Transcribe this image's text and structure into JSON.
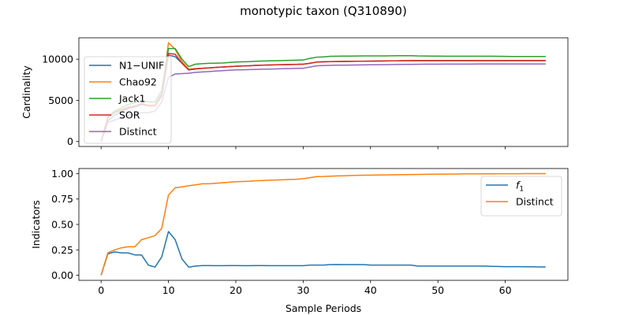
{
  "figure": {
    "title": "monotypic taxon (Q310890)"
  },
  "chart_data": [
    {
      "type": "line",
      "ylabel": "Cardinality",
      "xlabel": "",
      "xlim": [
        -3.3,
        69.3
      ],
      "ylim": [
        -600,
        12600
      ],
      "xticks": [
        0,
        10,
        20,
        30,
        40,
        50,
        60
      ],
      "yticks": [
        0,
        5000,
        10000
      ],
      "ytick_labels": [
        "0",
        "5000",
        "10000"
      ],
      "show_xtick_labels": false,
      "legend_position": "upper-left",
      "grid": false,
      "x": [
        0,
        1,
        2,
        3,
        4,
        5,
        6,
        7,
        8,
        9,
        10,
        11,
        12,
        13,
        14,
        15,
        16,
        17,
        18,
        19,
        20,
        21,
        22,
        23,
        24,
        25,
        26,
        27,
        28,
        29,
        30,
        31,
        32,
        33,
        34,
        35,
        36,
        37,
        38,
        39,
        40,
        41,
        42,
        43,
        44,
        45,
        46,
        47,
        48,
        49,
        50,
        51,
        52,
        53,
        54,
        55,
        56,
        57,
        58,
        59,
        60,
        61,
        62,
        63,
        64,
        65,
        66
      ],
      "series": [
        {
          "name": "N1−UNIF",
          "color": "#1f77b4",
          "values": [
            0,
            2500,
            3200,
            3600,
            4000,
            4200,
            4500,
            4300,
            4300,
            5500,
            10500,
            10300,
            9500,
            8700,
            8800,
            8900,
            8950,
            9000,
            9050,
            9100,
            9150,
            9180,
            9200,
            9250,
            9280,
            9300,
            9320,
            9340,
            9360,
            9380,
            9400,
            9500,
            9650,
            9680,
            9700,
            9720,
            9730,
            9740,
            9750,
            9760,
            9770,
            9780,
            9790,
            9800,
            9810,
            9820,
            9830,
            9830,
            9830,
            9830,
            9830,
            9830,
            9830,
            9830,
            9830,
            9830,
            9830,
            9830,
            9830,
            9830,
            9830,
            9830,
            9830,
            9830,
            9830,
            9830,
            9830
          ]
        },
        {
          "name": "Chao92",
          "color": "#ff7f0e",
          "values": [
            0,
            3000,
            3600,
            3900,
            4200,
            4300,
            4600,
            4300,
            4300,
            5700,
            12000,
            11200,
            9700,
            8800,
            8850,
            8900,
            8950,
            9000,
            9050,
            9100,
            9150,
            9180,
            9200,
            9250,
            9280,
            9300,
            9320,
            9340,
            9360,
            9380,
            9400,
            9500,
            9650,
            9680,
            9700,
            9720,
            9730,
            9740,
            9750,
            9760,
            9770,
            9780,
            9790,
            9800,
            9810,
            9820,
            9830,
            9830,
            9830,
            9830,
            9830,
            9830,
            9830,
            9830,
            9830,
            9830,
            9830,
            9830,
            9830,
            9830,
            9830,
            9830,
            9830,
            9830,
            9830,
            9830,
            9830
          ]
        },
        {
          "name": "Jack1",
          "color": "#2ca02c",
          "values": [
            0,
            3000,
            3700,
            4100,
            4500,
            4700,
            5000,
            4800,
            4800,
            6200,
            11300,
            11300,
            10000,
            9100,
            9400,
            9450,
            9500,
            9520,
            9540,
            9600,
            9650,
            9680,
            9700,
            9750,
            9780,
            9800,
            9820,
            9840,
            9860,
            9880,
            9900,
            10100,
            10250,
            10280,
            10350,
            10360,
            10370,
            10380,
            10390,
            10400,
            10400,
            10400,
            10400,
            10410,
            10420,
            10430,
            10430,
            10400,
            10390,
            10380,
            10370,
            10360,
            10360,
            10360,
            10360,
            10360,
            10360,
            10360,
            10360,
            10350,
            10340,
            10330,
            10330,
            10330,
            10330,
            10330,
            10330
          ]
        },
        {
          "name": "SOR",
          "color": "#d62728",
          "values": [
            0,
            2900,
            3500,
            3800,
            4100,
            4300,
            4600,
            4400,
            4400,
            5800,
            10700,
            10600,
            9500,
            8700,
            8850,
            8900,
            8950,
            9000,
            9050,
            9100,
            9150,
            9180,
            9200,
            9250,
            9280,
            9300,
            9320,
            9340,
            9360,
            9380,
            9400,
            9500,
            9650,
            9680,
            9700,
            9720,
            9730,
            9740,
            9750,
            9760,
            9770,
            9780,
            9790,
            9800,
            9810,
            9820,
            9830,
            9830,
            9830,
            9830,
            9830,
            9830,
            9830,
            9830,
            9830,
            9830,
            9830,
            9830,
            9830,
            9830,
            9830,
            9830,
            9830,
            9830,
            9830,
            9830,
            9830
          ]
        },
        {
          "name": "Distinct",
          "color": "#9467bd",
          "values": [
            0,
            2300,
            2600,
            2900,
            3200,
            3300,
            3500,
            3500,
            3700,
            4800,
            7800,
            8200,
            8250,
            8300,
            8400,
            8450,
            8500,
            8550,
            8600,
            8650,
            8700,
            8720,
            8740,
            8760,
            8780,
            8800,
            8820,
            8840,
            8860,
            8880,
            8900,
            9050,
            9200,
            9220,
            9250,
            9270,
            9280,
            9290,
            9300,
            9310,
            9320,
            9330,
            9340,
            9350,
            9360,
            9370,
            9380,
            9390,
            9400,
            9400,
            9400,
            9410,
            9410,
            9410,
            9410,
            9410,
            9420,
            9420,
            9420,
            9420,
            9420,
            9420,
            9420,
            9420,
            9420,
            9420,
            9420
          ]
        }
      ]
    },
    {
      "type": "line",
      "ylabel": "Indicators",
      "xlabel": "Sample Periods",
      "xlim": [
        -3.3,
        69.3
      ],
      "ylim": [
        -0.05,
        1.05
      ],
      "xticks": [
        0,
        10,
        20,
        30,
        40,
        50,
        60
      ],
      "xtick_labels": [
        "0",
        "10",
        "20",
        "30",
        "40",
        "50",
        "60"
      ],
      "yticks": [
        0,
        0.25,
        0.5,
        0.75,
        1.0
      ],
      "ytick_labels": [
        "0.00",
        "0.25",
        "0.50",
        "0.75",
        "1.00"
      ],
      "show_xtick_labels": true,
      "legend_position": "upper-right",
      "grid": false,
      "x": [
        0,
        1,
        2,
        3,
        4,
        5,
        6,
        7,
        8,
        9,
        10,
        11,
        12,
        13,
        14,
        15,
        16,
        17,
        18,
        19,
        20,
        21,
        22,
        23,
        24,
        25,
        26,
        27,
        28,
        29,
        30,
        31,
        32,
        33,
        34,
        35,
        36,
        37,
        38,
        39,
        40,
        41,
        42,
        43,
        44,
        45,
        46,
        47,
        48,
        49,
        50,
        51,
        52,
        53,
        54,
        55,
        56,
        57,
        58,
        59,
        60,
        61,
        62,
        63,
        64,
        65,
        66
      ],
      "series": [
        {
          "name": "f1",
          "label_main": "f",
          "label_sub": "1",
          "color": "#1f77b4",
          "values": [
            0,
            0.21,
            0.23,
            0.22,
            0.22,
            0.2,
            0.2,
            0.1,
            0.08,
            0.18,
            0.43,
            0.35,
            0.16,
            0.08,
            0.09,
            0.095,
            0.095,
            0.094,
            0.094,
            0.095,
            0.095,
            0.094,
            0.094,
            0.096,
            0.095,
            0.094,
            0.094,
            0.094,
            0.094,
            0.094,
            0.094,
            0.1,
            0.1,
            0.1,
            0.105,
            0.106,
            0.105,
            0.105,
            0.105,
            0.105,
            0.1,
            0.1,
            0.1,
            0.1,
            0.1,
            0.1,
            0.1,
            0.09,
            0.09,
            0.09,
            0.09,
            0.09,
            0.09,
            0.09,
            0.09,
            0.09,
            0.09,
            0.09,
            0.088,
            0.086,
            0.085,
            0.085,
            0.085,
            0.084,
            0.083,
            0.082,
            0.082
          ]
        },
        {
          "name": "Distinct",
          "label_main": "Distinct",
          "label_sub": "",
          "color": "#ff7f0e",
          "values": [
            0,
            0.22,
            0.25,
            0.27,
            0.28,
            0.28,
            0.35,
            0.37,
            0.39,
            0.46,
            0.79,
            0.86,
            0.87,
            0.88,
            0.89,
            0.9,
            0.9,
            0.905,
            0.91,
            0.915,
            0.92,
            0.922,
            0.925,
            0.93,
            0.932,
            0.935,
            0.937,
            0.94,
            0.942,
            0.945,
            0.95,
            0.96,
            0.97,
            0.972,
            0.975,
            0.977,
            0.979,
            0.981,
            0.983,
            0.984,
            0.985,
            0.986,
            0.987,
            0.988,
            0.989,
            0.99,
            0.991,
            0.992,
            0.993,
            0.994,
            0.995,
            0.995,
            0.996,
            0.996,
            0.997,
            0.997,
            0.998,
            0.998,
            0.998,
            0.999,
            0.999,
            0.999,
            0.999,
            1.0,
            1.0,
            1.0,
            1.0
          ]
        }
      ]
    }
  ]
}
